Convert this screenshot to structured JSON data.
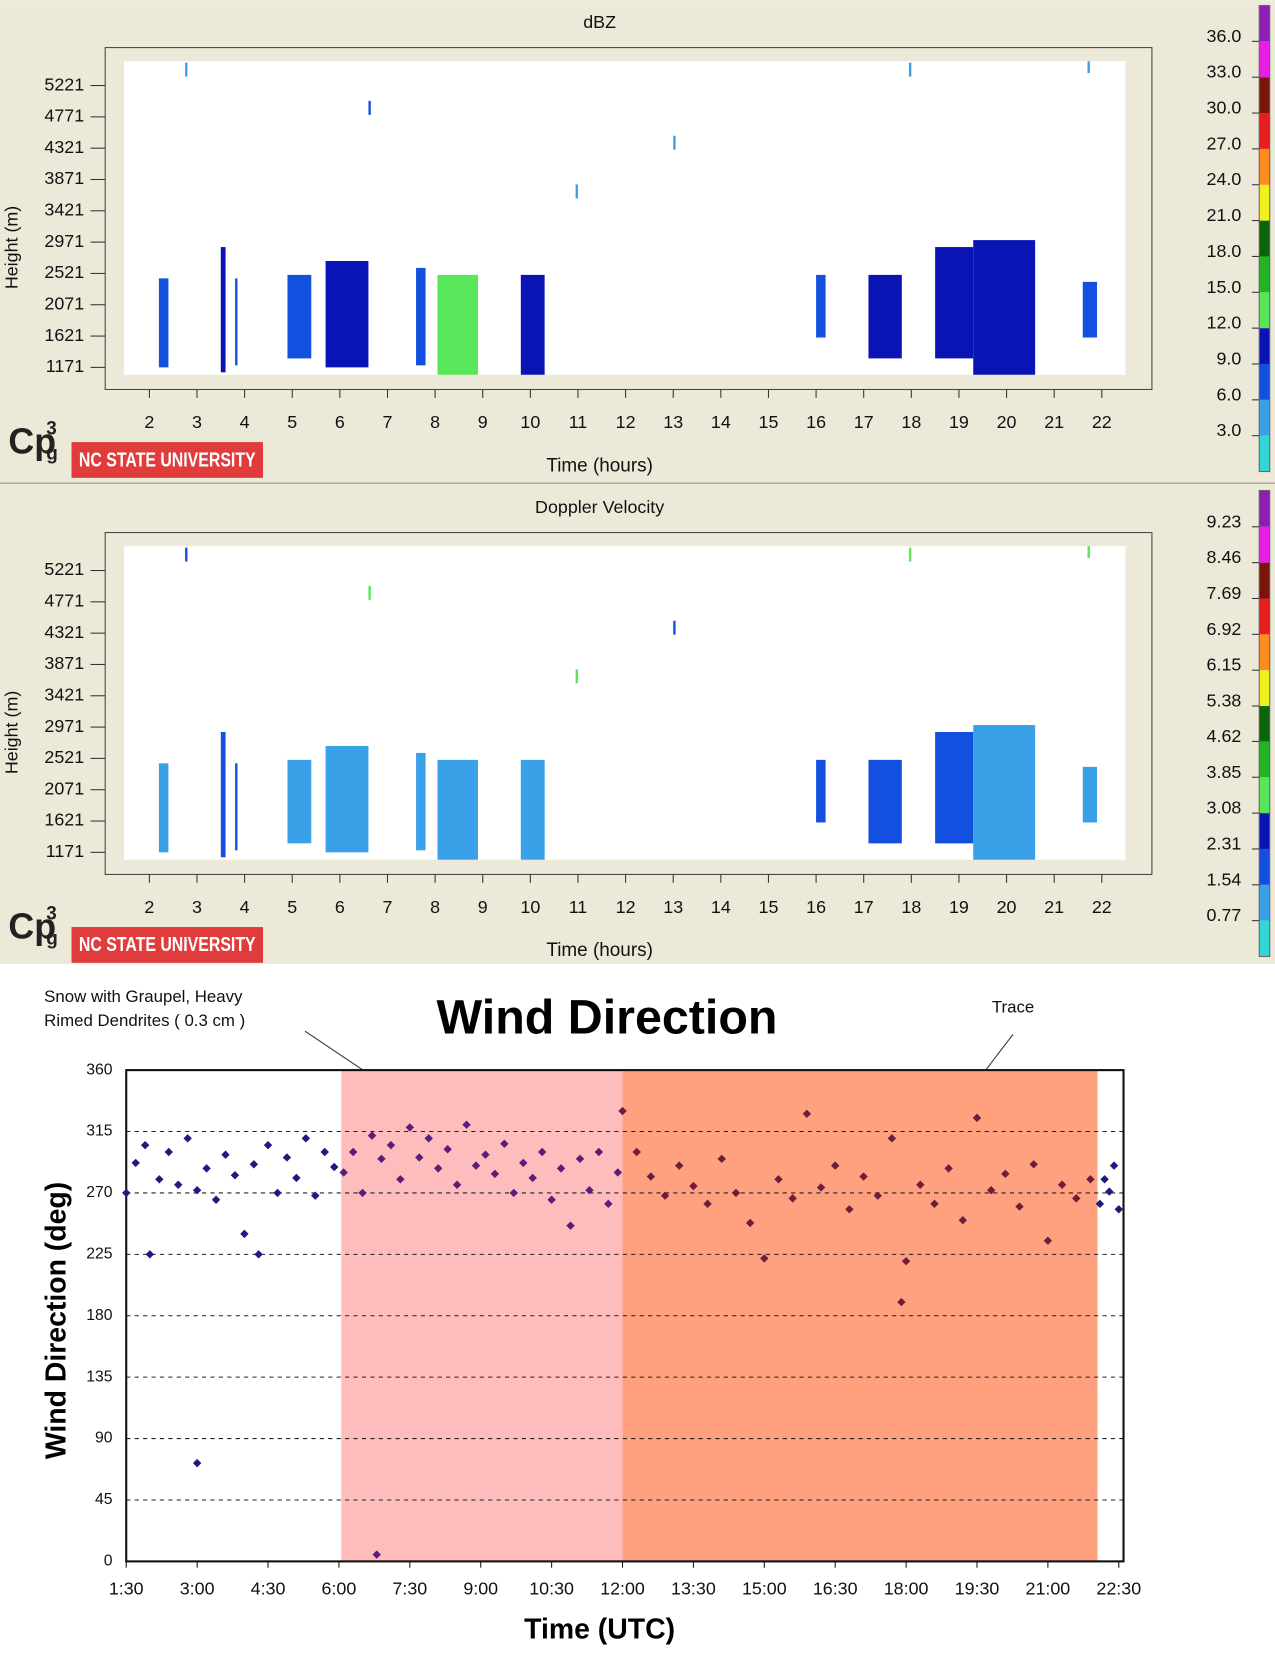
{
  "chart_data": [
    {
      "type": "radar",
      "title": "dBZ",
      "x_label": "Time (hours)",
      "y_label": "Height (m)",
      "xlim": [
        1.47,
        22.5
      ],
      "xticks": [
        2,
        3,
        4,
        5,
        6,
        7,
        8,
        9,
        10,
        11,
        12,
        13,
        14,
        15,
        16,
        17,
        18,
        19,
        20,
        21,
        22
      ],
      "ylim": [
        1065,
        5570
      ],
      "yticks": [
        1171,
        1621,
        2071,
        2521,
        2971,
        3421,
        3871,
        4321,
        4771,
        5221
      ],
      "colorbar": {
        "lim": [
          0,
          39
        ],
        "ticks": [
          {
            "value": 3,
            "label": "3.0"
          },
          {
            "value": 6,
            "label": "6.0"
          },
          {
            "value": 9,
            "label": "9.0"
          },
          {
            "value": 12,
            "label": "12.0"
          },
          {
            "value": 15,
            "label": "15.0"
          },
          {
            "value": 18,
            "label": "18.0"
          },
          {
            "value": 21,
            "label": "21.0"
          },
          {
            "value": 24,
            "label": "24.0"
          },
          {
            "value": 27,
            "label": "27.0"
          },
          {
            "value": 30,
            "label": "30.0"
          },
          {
            "value": 33,
            "label": "33.0"
          },
          {
            "value": 36,
            "label": "36.0"
          }
        ],
        "colors": [
          "#33d6d6",
          "#3aa0e8",
          "#1450e0",
          "#0a14b4",
          "#5ae65a",
          "#22b422",
          "#0a640a",
          "#f0f01e",
          "#ff8c1e",
          "#e61e1e",
          "#78140a",
          "#e61ee6",
          "#8c1eb4"
        ]
      },
      "echoes": [
        {
          "x": [
            2.2,
            2.4
          ],
          "y": [
            1171,
            2450
          ],
          "value": 7
        },
        {
          "x": [
            3.5,
            3.6
          ],
          "y": [
            1100,
            2900
          ],
          "value": 10
        },
        {
          "x": [
            3.8,
            3.85
          ],
          "y": [
            1200,
            2450
          ],
          "value": 7
        },
        {
          "x": [
            4.9,
            5.4
          ],
          "y": [
            1300,
            2500
          ],
          "value": 8
        },
        {
          "x": [
            5.7,
            6.6
          ],
          "y": [
            1171,
            2700
          ],
          "value": 11
        },
        {
          "x": [
            7.6,
            7.8
          ],
          "y": [
            1200,
            2600
          ],
          "value": 8
        },
        {
          "x": [
            8.05,
            8.9
          ],
          "y": [
            1065,
            2500
          ],
          "value": 12
        },
        {
          "x": [
            9.8,
            10.3
          ],
          "y": [
            1065,
            2500
          ],
          "value": 11
        },
        {
          "x": [
            16.0,
            16.2
          ],
          "y": [
            1600,
            2500
          ],
          "value": 7
        },
        {
          "x": [
            17.1,
            17.8
          ],
          "y": [
            1300,
            2500
          ],
          "value": 9
        },
        {
          "x": [
            18.5,
            19.3
          ],
          "y": [
            1300,
            2900
          ],
          "value": 10
        },
        {
          "x": [
            19.3,
            20.6
          ],
          "y": [
            1065,
            3000
          ],
          "value": 11
        },
        {
          "x": [
            21.6,
            21.9
          ],
          "y": [
            1600,
            2400
          ],
          "value": 8
        },
        {
          "x": [
            2.75,
            2.8
          ],
          "y": [
            5350,
            5550
          ],
          "value": 4
        },
        {
          "x": [
            6.6,
            6.65
          ],
          "y": [
            4800,
            5000
          ],
          "value": 7
        },
        {
          "x": [
            10.95,
            11.0
          ],
          "y": [
            3600,
            3800
          ],
          "value": 4
        },
        {
          "x": [
            13.0,
            13.05
          ],
          "y": [
            4300,
            4500
          ],
          "value": 4
        },
        {
          "x": [
            17.95,
            18.0
          ],
          "y": [
            5350,
            5550
          ],
          "value": 4
        },
        {
          "x": [
            21.7,
            21.75
          ],
          "y": [
            5400,
            5570
          ],
          "value": 4
        }
      ]
    },
    {
      "type": "radar",
      "title": "Doppler Velocity",
      "x_label": "Time (hours)",
      "y_label": "Height (m)",
      "xlim": [
        1.47,
        22.5
      ],
      "xticks": [
        2,
        3,
        4,
        5,
        6,
        7,
        8,
        9,
        10,
        11,
        12,
        13,
        14,
        15,
        16,
        17,
        18,
        19,
        20,
        21,
        22
      ],
      "ylim": [
        1065,
        5570
      ],
      "yticks": [
        1171,
        1621,
        2071,
        2521,
        2971,
        3421,
        3871,
        4321,
        4771,
        5221
      ],
      "colorbar": {
        "lim": [
          0,
          10.01
        ],
        "ticks": [
          0.77,
          1.54,
          2.31,
          3.08,
          3.85,
          4.62,
          5.38,
          6.15,
          6.92,
          7.69,
          8.46,
          9.23
        ],
        "colors": [
          "#33d6d6",
          "#3aa0e8",
          "#1450e0",
          "#0a14b4",
          "#5ae65a",
          "#22b422",
          "#0a640a",
          "#f0f01e",
          "#ff8c1e",
          "#e61e1e",
          "#78140a",
          "#e61ee6",
          "#8c1eb4"
        ]
      },
      "echoes": [
        {
          "x": [
            2.2,
            2.4
          ],
          "y": [
            1171,
            2450
          ],
          "value": 1.2
        },
        {
          "x": [
            3.5,
            3.6
          ],
          "y": [
            1100,
            2900
          ],
          "value": 2.0
        },
        {
          "x": [
            3.8,
            3.85
          ],
          "y": [
            1200,
            2450
          ],
          "value": 2.0
        },
        {
          "x": [
            4.9,
            5.4
          ],
          "y": [
            1300,
            2500
          ],
          "value": 1.2
        },
        {
          "x": [
            5.7,
            6.6
          ],
          "y": [
            1171,
            2700
          ],
          "value": 1.2
        },
        {
          "x": [
            7.6,
            7.8
          ],
          "y": [
            1200,
            2600
          ],
          "value": 1.2
        },
        {
          "x": [
            8.05,
            8.9
          ],
          "y": [
            1065,
            2500
          ],
          "value": 1.2
        },
        {
          "x": [
            9.8,
            10.3
          ],
          "y": [
            1065,
            2500
          ],
          "value": 1.2
        },
        {
          "x": [
            16.0,
            16.2
          ],
          "y": [
            1600,
            2500
          ],
          "value": 2.0
        },
        {
          "x": [
            17.1,
            17.8
          ],
          "y": [
            1300,
            2500
          ],
          "value": 2.0
        },
        {
          "x": [
            18.5,
            19.3
          ],
          "y": [
            1300,
            2900
          ],
          "value": 2.0
        },
        {
          "x": [
            19.3,
            20.6
          ],
          "y": [
            1065,
            3000
          ],
          "value": 1.2
        },
        {
          "x": [
            21.6,
            21.9
          ],
          "y": [
            1600,
            2400
          ],
          "value": 1.2
        },
        {
          "x": [
            2.75,
            2.8
          ],
          "y": [
            5350,
            5550
          ],
          "value": 2.0
        },
        {
          "x": [
            6.6,
            6.65
          ],
          "y": [
            4800,
            5000
          ],
          "value": 3.5
        },
        {
          "x": [
            10.95,
            11.0
          ],
          "y": [
            3600,
            3800
          ],
          "value": 3.5
        },
        {
          "x": [
            13.0,
            13.05
          ],
          "y": [
            4300,
            4500
          ],
          "value": 2.0
        },
        {
          "x": [
            17.95,
            18.0
          ],
          "y": [
            5350,
            5550
          ],
          "value": 3.5
        },
        {
          "x": [
            21.7,
            21.75
          ],
          "y": [
            5400,
            5570
          ],
          "value": 3.5
        }
      ]
    },
    {
      "type": "scatter",
      "title": "Wind Direction",
      "x_label": "Time (UTC)",
      "y_label": "Wind Direction (deg)",
      "xlim": [
        1.5,
        22.6
      ],
      "xticks": [
        {
          "value": 1.5,
          "label": "1:30"
        },
        {
          "value": 3,
          "label": "3:00"
        },
        {
          "value": 4.5,
          "label": "4:30"
        },
        {
          "value": 6,
          "label": "6:00"
        },
        {
          "value": 7.5,
          "label": "7:30"
        },
        {
          "value": 9,
          "label": "9:00"
        },
        {
          "value": 10.5,
          "label": "10:30"
        },
        {
          "value": 12,
          "label": "12:00"
        },
        {
          "value": 13.5,
          "label": "13:30"
        },
        {
          "value": 15,
          "label": "15:00"
        },
        {
          "value": 16.5,
          "label": "16:30"
        },
        {
          "value": 18,
          "label": "18:00"
        },
        {
          "value": 19.5,
          "label": "19:30"
        },
        {
          "value": 21,
          "label": "21:00"
        },
        {
          "value": 22.5,
          "label": "22:30"
        }
      ],
      "ylim": [
        0,
        360
      ],
      "yticks": [
        0,
        45,
        90,
        135,
        180,
        225,
        270,
        315,
        360
      ],
      "grid": true,
      "spans": [
        {
          "x": [
            6.05,
            12.0
          ],
          "color": "#ffbcbc",
          "label": [
            "Snow with Graupel, Heavy",
            "Rimed Dendrites  ( 0.3 cm )"
          ]
        },
        {
          "x": [
            12.0,
            22.05
          ],
          "color": "#ffa07f",
          "label": [
            "Trace"
          ]
        }
      ],
      "series": [
        {
          "color": "#1c1c80",
          "x": [
            1.5,
            1.7,
            1.9,
            2.0,
            2.2,
            2.4,
            2.6,
            2.8,
            3.0,
            3.0,
            3.2,
            3.4,
            3.6,
            3.8,
            4.0,
            4.2,
            4.3,
            4.5,
            4.7,
            4.9,
            5.1,
            5.3,
            5.5,
            5.7,
            5.9,
            22.1,
            22.2,
            22.3,
            22.4,
            22.5
          ],
          "values": [
            270,
            292,
            305,
            225,
            280,
            300,
            276,
            310,
            272,
            72,
            288,
            265,
            298,
            283,
            240,
            291,
            225,
            305,
            270,
            296,
            281,
            310,
            268,
            300,
            289,
            262,
            280,
            271,
            290,
            258
          ]
        },
        {
          "color": "#5a1e78",
          "x": [
            6.1,
            6.3,
            6.5,
            6.7,
            6.8,
            6.9,
            7.1,
            7.3,
            7.5,
            7.7,
            7.9,
            8.1,
            8.3,
            8.5,
            8.7,
            8.9,
            9.1,
            9.3,
            9.5,
            9.7,
            9.9,
            10.1,
            10.3,
            10.5,
            10.7,
            10.9,
            11.1,
            11.3,
            11.5,
            11.7,
            11.9
          ],
          "values": [
            285,
            300,
            270,
            312,
            5,
            295,
            305,
            280,
            318,
            296,
            310,
            288,
            302,
            276,
            320,
            290,
            298,
            284,
            306,
            270,
            292,
            281,
            300,
            265,
            288,
            246,
            295,
            272,
            300,
            262,
            285
          ]
        },
        {
          "color": "#6e1e3c",
          "x": [
            12.0,
            12.3,
            12.6,
            12.9,
            13.2,
            13.5,
            13.8,
            14.1,
            14.4,
            14.7,
            15.0,
            15.3,
            15.6,
            15.9,
            16.2,
            16.5,
            16.8,
            17.1,
            17.4,
            17.7,
            17.9,
            18.0,
            18.3,
            18.6,
            18.9,
            19.2,
            19.5,
            19.8,
            20.1,
            20.4,
            20.7,
            21.0,
            21.3,
            21.6,
            21.9
          ],
          "values": [
            330,
            300,
            282,
            268,
            290,
            275,
            262,
            295,
            270,
            248,
            222,
            280,
            266,
            328,
            274,
            290,
            258,
            282,
            268,
            310,
            190,
            220,
            276,
            262,
            288,
            250,
            325,
            272,
            284,
            260,
            291,
            235,
            276,
            266,
            280
          ]
        }
      ]
    }
  ],
  "logo": {
    "text": "Cp",
    "superscript": "3",
    "subscript": "g",
    "banner": "NC STATE UNIVERSITY"
  }
}
